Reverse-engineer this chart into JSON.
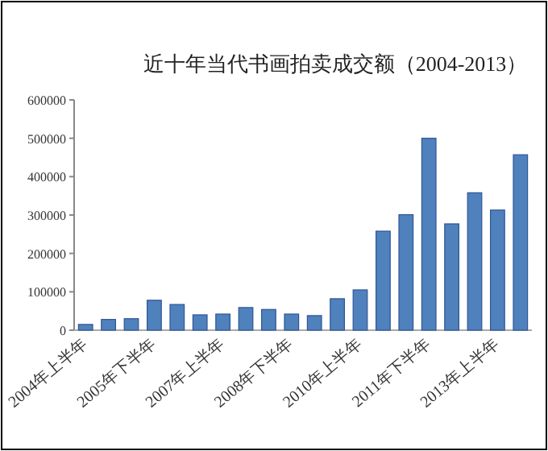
{
  "chart_data": {
    "type": "bar",
    "title": "近十年当代书画拍卖成交额（2004-2013）",
    "categories": [
      "2004年上半年",
      null,
      null,
      "2005年下半年",
      null,
      null,
      "2007年上半年",
      null,
      null,
      "2008年下半年",
      null,
      null,
      "2010年上半年",
      null,
      null,
      "2011年下半年",
      null,
      null,
      "2013年上半年",
      null
    ],
    "values": [
      15000,
      28000,
      30000,
      78000,
      67000,
      40000,
      42000,
      59000,
      54000,
      42000,
      38000,
      82000,
      105000,
      258000,
      301000,
      500000,
      277000,
      358000,
      313000,
      457000
    ],
    "color": "#4f81bd",
    "ylim": [
      0,
      600000
    ],
    "yticks": [
      0,
      100000,
      200000,
      300000,
      400000,
      500000,
      600000
    ],
    "grid": false
  }
}
